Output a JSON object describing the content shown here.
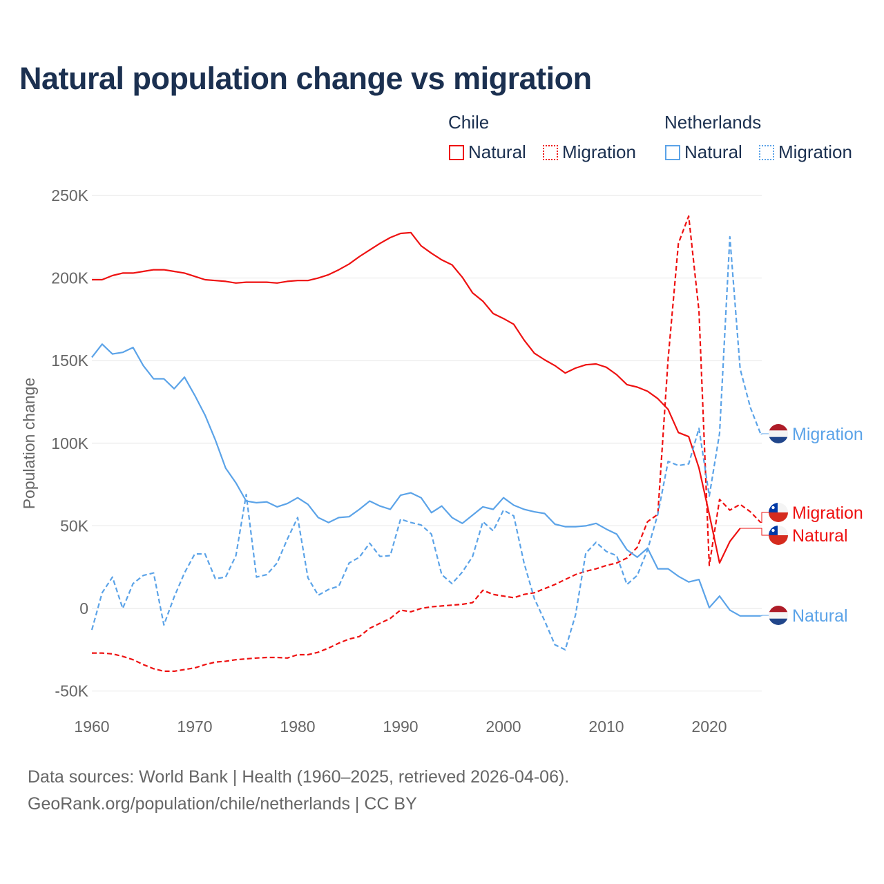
{
  "title": "Natural population change vs migration",
  "legend": {
    "groups": [
      {
        "name": "Chile",
        "items": [
          {
            "label": "Natural",
            "style": "solid"
          },
          {
            "label": "Migration",
            "style": "dashed"
          }
        ],
        "color": "#ee1111"
      },
      {
        "name": "Netherlands",
        "items": [
          {
            "label": "Natural",
            "style": "solid"
          },
          {
            "label": "Migration",
            "style": "dashed"
          }
        ],
        "color": "#5ba3e8"
      }
    ]
  },
  "footer": {
    "line1": "Data sources: World Bank | Health (1960–2025, retrieved 2026-04-06).",
    "line2": "GeoRank.org/population/chile/netherlands | CC BY"
  },
  "chart_data": {
    "type": "line",
    "title": "Natural population change vs migration",
    "xlabel": "",
    "ylabel": "Population change",
    "xlim": [
      1960,
      2025
    ],
    "ylim": [
      -50000,
      250000
    ],
    "grid": true,
    "legend_position": "top-right",
    "x_ticks": [
      1960,
      1970,
      1980,
      1990,
      2000,
      2010,
      2020
    ],
    "x_tick_labels": [
      "1960",
      "1970",
      "1980",
      "1990",
      "2000",
      "2010",
      "2020"
    ],
    "y_ticks": [
      -50000,
      0,
      50000,
      100000,
      150000,
      200000,
      250000
    ],
    "y_tick_labels": [
      "-50K",
      "0",
      "50K",
      "100K",
      "150K",
      "200K",
      "250K"
    ],
    "x_start": 1960,
    "series": [
      {
        "name": "Chile Natural",
        "end_label": "Natural",
        "flag": "chile",
        "color": "#ee1111",
        "dashed": false,
        "values": [
          199,
          199,
          201.5,
          203,
          203,
          204,
          205,
          205,
          204,
          203,
          201,
          199,
          198.5,
          198,
          197,
          197.5,
          197.5,
          197.5,
          197,
          198,
          198.5,
          198.5,
          200,
          202,
          205,
          208.5,
          213,
          217,
          221,
          224.5,
          227,
          227.5,
          219.5,
          215,
          211,
          208,
          200.5,
          191,
          186,
          178.5,
          175.5,
          172,
          162.5,
          154.5,
          150.5,
          147,
          142.5,
          145.5,
          147.5,
          148,
          146,
          141.5,
          135.5,
          134,
          131.5,
          127,
          120.5,
          106.5,
          104,
          85,
          57,
          27.5,
          40.5,
          48.5
        ]
      },
      {
        "name": "Chile Migration",
        "end_label": "Migration",
        "flag": "chile",
        "color": "#ee1111",
        "dashed": true,
        "values": [
          -27,
          -27,
          -27.5,
          -29,
          -31,
          -34,
          -36.5,
          -38,
          -38,
          -37,
          -36,
          -34,
          -32.5,
          -32,
          -31,
          -30.5,
          -30,
          -29.7,
          -29.7,
          -30,
          -28,
          -28,
          -26.5,
          -24,
          -21,
          -18.5,
          -17,
          -12,
          -9,
          -6,
          -1,
          -2,
          0,
          1,
          1.5,
          2,
          2.5,
          3.5,
          11,
          8.5,
          7.5,
          6.5,
          8.5,
          9.5,
          12,
          14.5,
          17.5,
          20.5,
          22.5,
          24,
          26,
          27.5,
          30.5,
          37,
          52.5,
          57,
          151,
          221,
          237.5,
          180,
          26,
          66,
          59.5,
          63,
          58.5,
          52
        ]
      },
      {
        "name": "Netherlands Natural",
        "end_label": "Natural",
        "flag": "netherlands",
        "color": "#5ba3e8",
        "dashed": false,
        "values": [
          152,
          160,
          154,
          155,
          158,
          147,
          139,
          139,
          133,
          140,
          129,
          117,
          102,
          85,
          76,
          65,
          64,
          64.5,
          61.5,
          63.5,
          67,
          63,
          55,
          52,
          55,
          55.5,
          60,
          65,
          62,
          60,
          68.5,
          70,
          67,
          58,
          62,
          55,
          51.5,
          56.5,
          61.5,
          60,
          67,
          62.5,
          60,
          58.5,
          57.5,
          51,
          49.5,
          49.5,
          50,
          51.5,
          48,
          45,
          35.5,
          31,
          36.5,
          24,
          24,
          19.5,
          16,
          17.5,
          0.5,
          7.5,
          -1,
          -4.5,
          -4.5,
          -4.5
        ]
      },
      {
        "name": "Netherlands Migration",
        "end_label": "Migration",
        "flag": "netherlands",
        "color": "#5ba3e8",
        "dashed": true,
        "values": [
          -13,
          9.5,
          19,
          0,
          15,
          20,
          21.5,
          -10,
          7,
          21.5,
          33,
          33,
          18,
          19,
          32,
          69,
          19,
          20.5,
          27.5,
          42,
          55,
          18.5,
          8,
          11.5,
          13.5,
          27.5,
          31,
          39.5,
          31.5,
          32,
          54,
          52,
          50.5,
          45,
          20.5,
          15,
          22,
          31.5,
          52.5,
          47,
          59.5,
          56,
          27.5,
          6,
          -7.5,
          -22,
          -25,
          -4,
          33.5,
          40,
          34.5,
          32,
          14.5,
          20,
          35.5,
          57,
          89,
          86.5,
          87.5,
          109,
          68,
          106,
          225,
          145,
          121.5,
          105.5
        ]
      }
    ],
    "value_unit": "thousands"
  }
}
